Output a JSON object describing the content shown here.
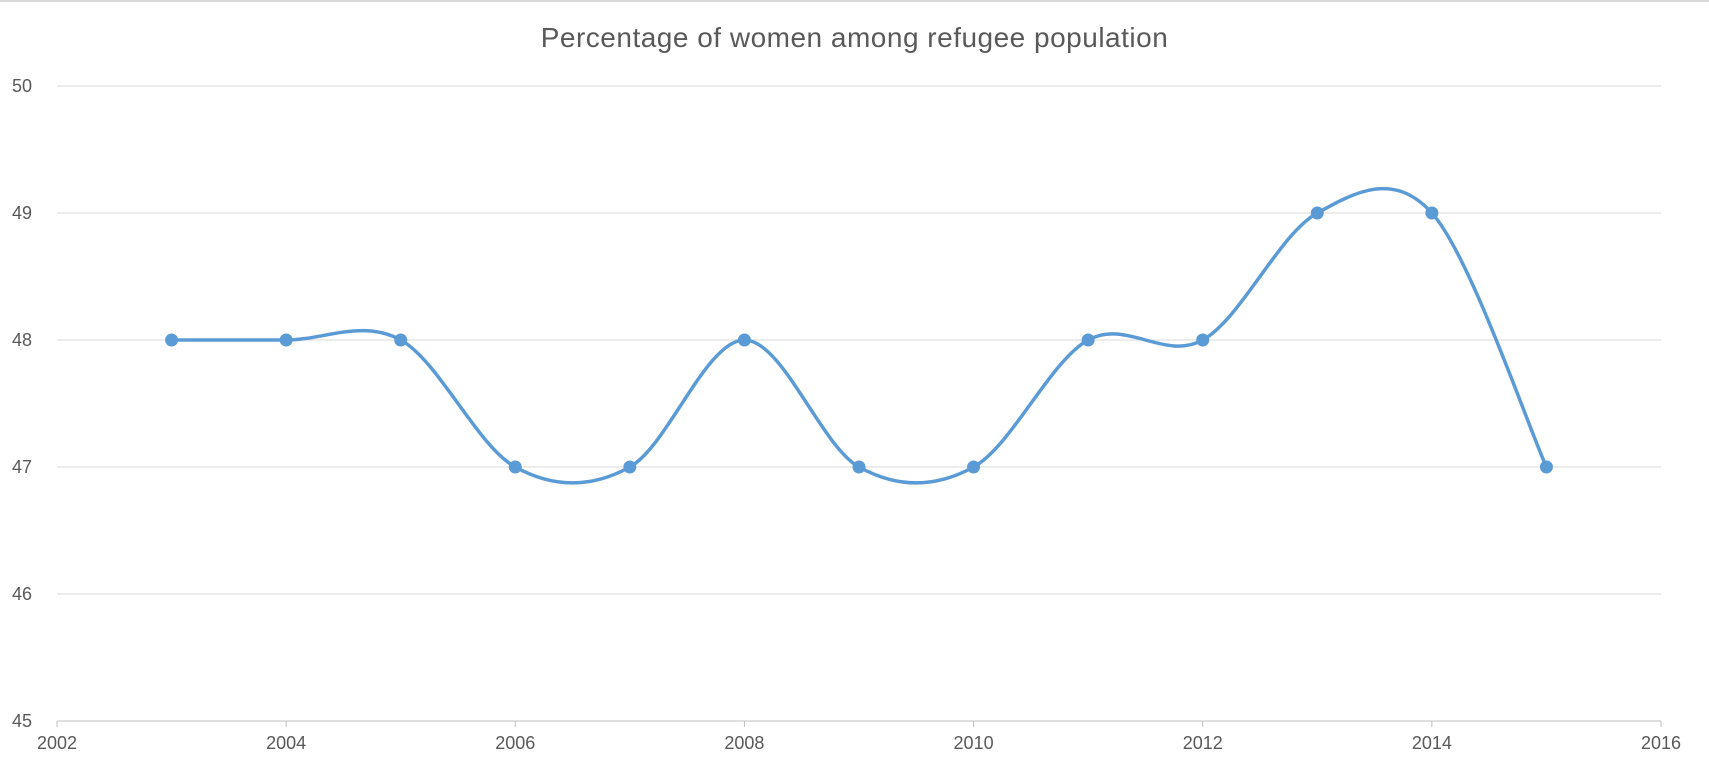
{
  "chart_data": {
    "type": "line",
    "title": "Percentage of women among refugee population",
    "xlabel": "",
    "ylabel": "",
    "x": [
      2003,
      2004,
      2005,
      2006,
      2007,
      2008,
      2009,
      2010,
      2011,
      2012,
      2013,
      2014,
      2015
    ],
    "series": [
      {
        "values": [
          48,
          48,
          48,
          47,
          47,
          48,
          47,
          47,
          48,
          48,
          49,
          49,
          47
        ]
      }
    ],
    "xlim": [
      2002,
      2016
    ],
    "ylim": [
      45,
      50
    ],
    "x_ticks": [
      2002,
      2004,
      2006,
      2008,
      2010,
      2012,
      2014,
      2016
    ],
    "y_ticks": [
      45,
      46,
      47,
      48,
      49,
      50
    ],
    "smoothed": true,
    "markers": true,
    "grid": "horizontal",
    "legend": "none",
    "colors": {
      "series": "#5b9bd5",
      "grid": "#d9d9d9",
      "text": "#595959"
    }
  }
}
